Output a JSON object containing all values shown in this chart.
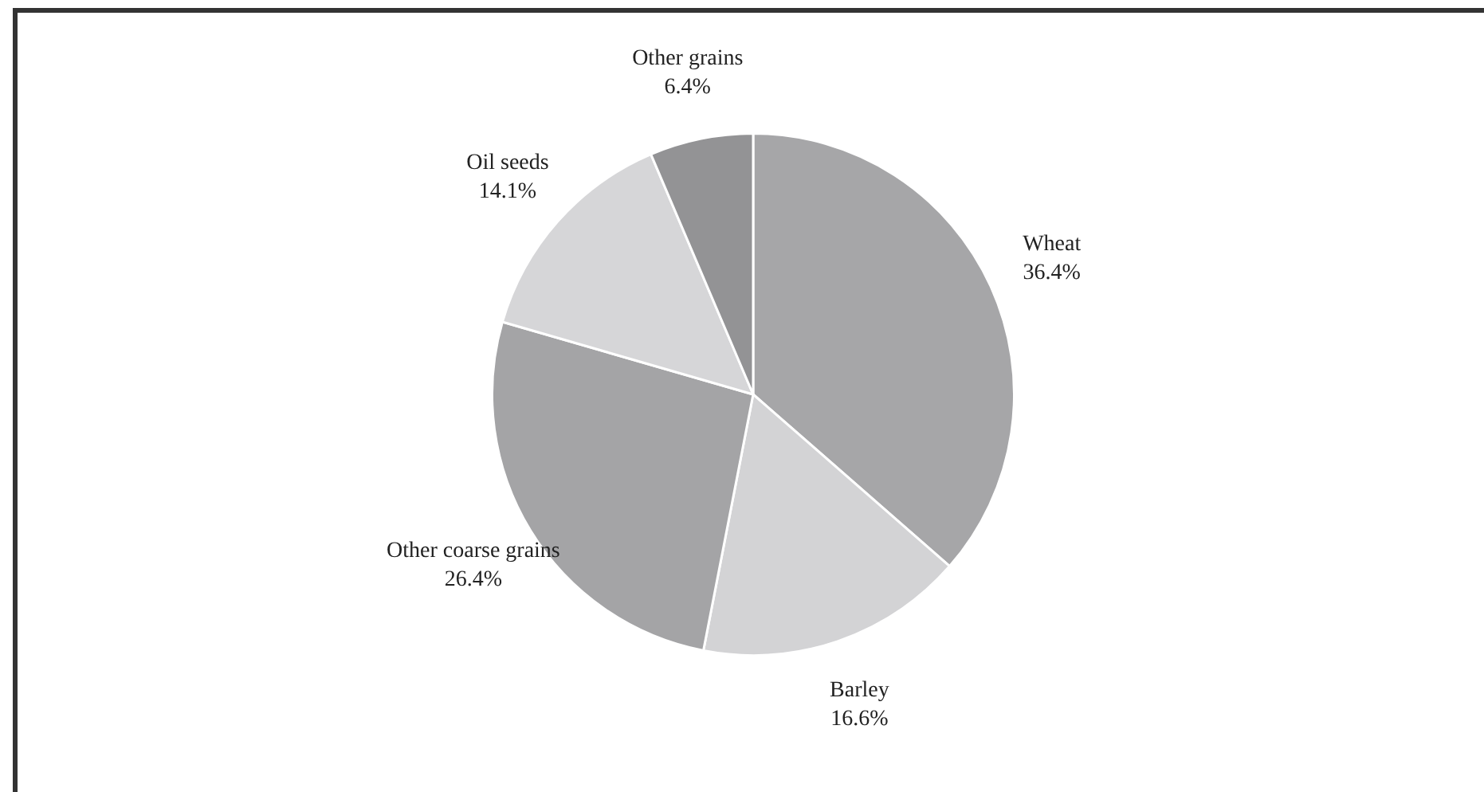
{
  "chart_data": {
    "type": "pie",
    "categories": [
      "Wheat",
      "Barley",
      "Other coarse grains",
      "Oil seeds",
      "Other grains"
    ],
    "values": [
      36.4,
      16.6,
      26.4,
      14.1,
      6.4
    ],
    "value_labels": [
      "36.4%",
      "16.6%",
      "26.4%",
      "14.1%",
      "6.4%"
    ],
    "colors": [
      "#a6a6a8",
      "#d3d3d5",
      "#a4a4a6",
      "#d6d6d8",
      "#939395"
    ],
    "legend": false
  }
}
